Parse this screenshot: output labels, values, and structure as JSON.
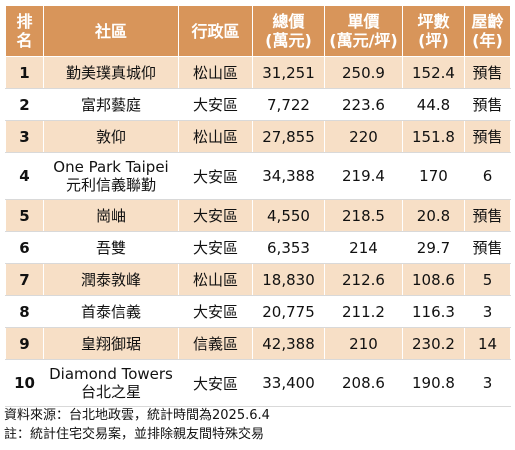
{
  "headers": {
    "rank": [
      "排",
      "名"
    ],
    "name": "社區",
    "district": "行政區",
    "total": [
      "總價",
      "(萬元)"
    ],
    "unit": [
      "單價",
      "(萬元/坪)"
    ],
    "area": [
      "坪數",
      "(坪)"
    ],
    "age": [
      "屋齡",
      "(年)"
    ]
  },
  "rows": [
    {
      "rank": "1",
      "name": [
        "勤美璞真城仰"
      ],
      "district": "松山區",
      "total": "31,251",
      "unit": "250.9",
      "area": "152.4",
      "age": "預售"
    },
    {
      "rank": "2",
      "name": [
        "富邦藝庭"
      ],
      "district": "大安區",
      "total": "7,722",
      "unit": "223.6",
      "area": "44.8",
      "age": "預售"
    },
    {
      "rank": "3",
      "name": [
        "敦仰"
      ],
      "district": "松山區",
      "total": "27,855",
      "unit": "220",
      "area": "151.8",
      "age": "預售"
    },
    {
      "rank": "4",
      "name": [
        "One Park Taipei",
        "元利信義聯勤"
      ],
      "district": "大安區",
      "total": "34,388",
      "unit": "219.4",
      "area": "170",
      "age": "6"
    },
    {
      "rank": "5",
      "name": [
        "崗岫"
      ],
      "district": "大安區",
      "total": "4,550",
      "unit": "218.5",
      "area": "20.8",
      "age": "預售"
    },
    {
      "rank": "6",
      "name": [
        "吾雙"
      ],
      "district": "大安區",
      "total": "6,353",
      "unit": "214",
      "area": "29.7",
      "age": "預售"
    },
    {
      "rank": "7",
      "name": [
        "潤泰敦峰"
      ],
      "district": "松山區",
      "total": "18,830",
      "unit": "212.6",
      "area": "108.6",
      "age": "5"
    },
    {
      "rank": "8",
      "name": [
        "首泰信義"
      ],
      "district": "大安區",
      "total": "20,775",
      "unit": "211.2",
      "area": "116.3",
      "age": "3"
    },
    {
      "rank": "9",
      "name": [
        "皇翔御琚"
      ],
      "district": "信義區",
      "total": "42,388",
      "unit": "210",
      "area": "230.2",
      "age": "14"
    },
    {
      "rank": "10",
      "name": [
        "Diamond Towers",
        "台北之星"
      ],
      "district": "大安區",
      "total": "33,400",
      "unit": "208.6",
      "area": "190.8",
      "age": "3"
    }
  ],
  "notes": {
    "source": "資料來源：台北地政雲，統計時間為2025.6.4",
    "remark": "註：統計住宅交易案，並排除親友間特殊交易"
  }
}
